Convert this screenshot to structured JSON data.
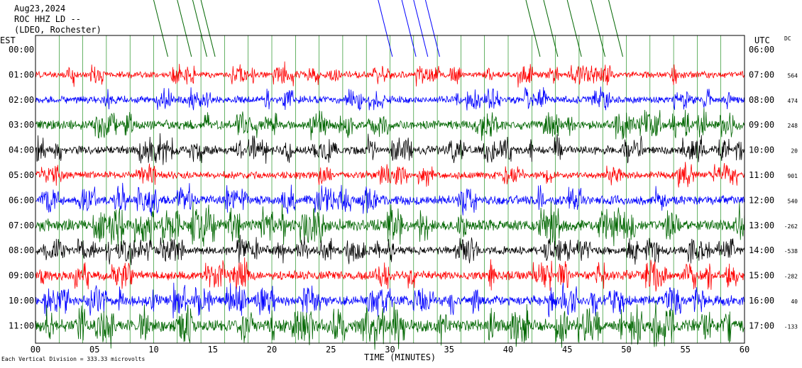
{
  "header": {
    "line1": "Aug23,2024",
    "line2": "ROC HHZ LD --",
    "line3": "(LDEO, Rochester)"
  },
  "labels": {
    "left_zone": "EST",
    "right_zone": "UTC",
    "dc_header": "DC",
    "xlabel": "TIME (MINUTES)",
    "scale_note": "Each Vertical Division = 333.33 microvolts"
  },
  "colors": {
    "red": "#ff0000",
    "blue": "#0000ff",
    "green": "#006600",
    "black": "#000000",
    "grid": "#008000"
  },
  "chart_data": {
    "type": "line",
    "title": "ROC HHZ LD --",
    "xlabel": "TIME (MINUTES)",
    "xlim": [
      0,
      60
    ],
    "x_ticks": [
      "00",
      "05",
      "10",
      "15",
      "20",
      "25",
      "30",
      "35",
      "40",
      "45",
      "50",
      "55",
      "60"
    ],
    "vertical_gridlines_minutes": [
      0,
      2,
      4,
      6,
      8,
      10,
      12,
      14,
      16,
      18,
      20,
      22,
      24,
      26,
      28,
      30,
      32,
      34,
      36,
      38,
      40,
      42,
      44,
      46,
      48,
      50,
      52,
      54,
      56,
      58,
      60
    ],
    "rows": [
      {
        "est": "00:00",
        "utc": "06:00",
        "dc": "",
        "color": "red"
      },
      {
        "est": "01:00",
        "utc": "07:00",
        "dc": "564",
        "color": "red"
      },
      {
        "est": "02:00",
        "utc": "08:00",
        "dc": "474",
        "color": "blue"
      },
      {
        "est": "03:00",
        "utc": "09:00",
        "dc": "248",
        "color": "green"
      },
      {
        "est": "04:00",
        "utc": "10:00",
        "dc": "20",
        "color": "black"
      },
      {
        "est": "05:00",
        "utc": "11:00",
        "dc": "901",
        "color": "red"
      },
      {
        "est": "06:00",
        "utc": "12:00",
        "dc": "540",
        "color": "blue"
      },
      {
        "est": "07:00",
        "utc": "13:00",
        "dc": "-262",
        "color": "green"
      },
      {
        "est": "08:00",
        "utc": "14:00",
        "dc": "-538",
        "color": "black"
      },
      {
        "est": "09:00",
        "utc": "15:00",
        "dc": "-282",
        "color": "red"
      },
      {
        "est": "10:00",
        "utc": "16:00",
        "dc": "40",
        "color": "blue"
      },
      {
        "est": "11:00",
        "utc": "17:00",
        "dc": "-133",
        "color": "green"
      }
    ],
    "traces": [
      {
        "color": "red",
        "row": 1,
        "amp": 7,
        "seed": 11
      },
      {
        "color": "blue",
        "row": 2,
        "amp": 8,
        "seed": 23
      },
      {
        "color": "green",
        "row": 3,
        "amp": 10,
        "seed": 37
      },
      {
        "color": "black",
        "row": 4,
        "amp": 9,
        "seed": 41
      },
      {
        "color": "red",
        "row": 5,
        "amp": 8,
        "seed": 53
      },
      {
        "color": "blue",
        "row": 6,
        "amp": 10,
        "seed": 67
      },
      {
        "color": "green",
        "row": 7,
        "amp": 13,
        "seed": 71
      },
      {
        "color": "black",
        "row": 8,
        "amp": 9,
        "seed": 83
      },
      {
        "color": "red",
        "row": 9,
        "amp": 10,
        "seed": 97
      },
      {
        "color": "blue",
        "row": 10,
        "amp": 11,
        "seed": 101
      },
      {
        "color": "green",
        "row": 11,
        "amp": 14,
        "seed": 113
      }
    ]
  }
}
